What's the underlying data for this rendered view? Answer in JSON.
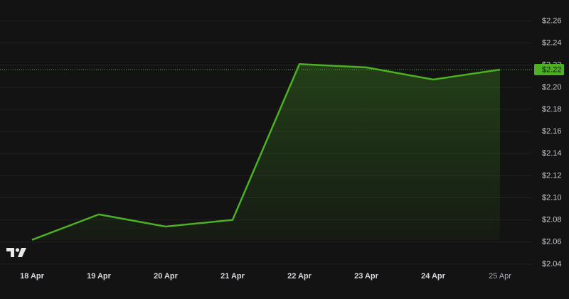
{
  "chart_data": {
    "type": "area",
    "x": [
      "18 Apr",
      "19 Apr",
      "20 Apr",
      "21 Apr",
      "22 Apr",
      "23 Apr",
      "24 Apr",
      "25 Apr"
    ],
    "values": [
      2.062,
      2.085,
      2.074,
      2.08,
      2.221,
      2.218,
      2.207,
      2.216
    ],
    "color": "#4caf24",
    "ylim": [
      2.038,
      2.279
    ],
    "yticks": [
      {
        "value": 2.04,
        "label": "$2.04"
      },
      {
        "value": 2.06,
        "label": "$2.06"
      },
      {
        "value": 2.08,
        "label": "$2.08"
      },
      {
        "value": 2.1,
        "label": "$2.10"
      },
      {
        "value": 2.12,
        "label": "$2.12"
      },
      {
        "value": 2.14,
        "label": "$2.14"
      },
      {
        "value": 2.16,
        "label": "$2.16"
      },
      {
        "value": 2.18,
        "label": "$2.18"
      },
      {
        "value": 2.2,
        "label": "$2.20"
      },
      {
        "value": 2.22,
        "label": "$2.22"
      },
      {
        "value": 2.24,
        "label": "$2.24"
      },
      {
        "value": 2.26,
        "label": "$2.26"
      }
    ],
    "grid": true,
    "last_price_label": "$2.22"
  }
}
